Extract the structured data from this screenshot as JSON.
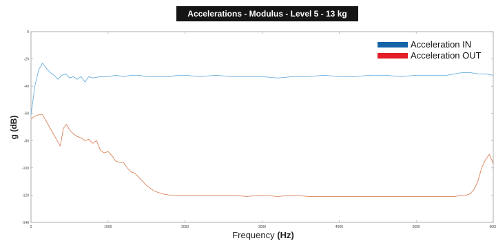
{
  "chart_data": {
    "type": "line",
    "title": "Accelerations - Modulus - Level 5 - 13 kg",
    "xlabel_main": "Frequency",
    "xlabel_unit": "(Hz)",
    "ylabel": "g (dB)",
    "xlim": [
      0,
      6000
    ],
    "ylim": [
      -140,
      0
    ],
    "xticks": [
      0,
      1000,
      2000,
      3000,
      4000,
      5000,
      6000
    ],
    "yticks": [
      0,
      -20,
      -40,
      -60,
      -80,
      -100,
      -120,
      -140
    ],
    "grid": false,
    "legend_position": "top-right",
    "series": [
      {
        "name": "Acceleration IN",
        "legend_color": "#1464a8",
        "line_color": "#6aaedd",
        "x": [
          0,
          50,
          100,
          150,
          200,
          250,
          300,
          350,
          400,
          450,
          500,
          550,
          600,
          650,
          700,
          750,
          800,
          900,
          1000,
          1100,
          1200,
          1300,
          1400,
          1500,
          1600,
          1700,
          1800,
          1900,
          2000,
          2200,
          2400,
          2600,
          2800,
          3000,
          3200,
          3400,
          3600,
          3800,
          4000,
          4200,
          4400,
          4600,
          4800,
          5000,
          5200,
          5400,
          5500,
          5600,
          5700,
          5800,
          5900,
          6000
        ],
        "y": [
          -61,
          -40,
          -28,
          -23,
          -27,
          -30,
          -32,
          -35,
          -32,
          -31,
          -34,
          -33,
          -35,
          -33,
          -37,
          -33,
          -34,
          -33,
          -33,
          -32,
          -33,
          -32,
          -32,
          -33,
          -33,
          -33,
          -33,
          -32,
          -32,
          -33,
          -32,
          -33,
          -33,
          -33,
          -34,
          -33,
          -33,
          -32,
          -33,
          -33,
          -32,
          -32,
          -33,
          -32,
          -32,
          -32,
          -31,
          -30,
          -30,
          -31,
          -31,
          -32
        ]
      },
      {
        "name": "Acceleration OUT",
        "legend_color": "#e41e26",
        "line_color": "#d9825b",
        "x": [
          0,
          50,
          100,
          150,
          200,
          250,
          300,
          350,
          380,
          420,
          460,
          500,
          550,
          600,
          650,
          700,
          750,
          800,
          850,
          900,
          950,
          1000,
          1050,
          1100,
          1150,
          1200,
          1250,
          1300,
          1350,
          1400,
          1450,
          1500,
          1550,
          1600,
          1700,
          1800,
          1900,
          2000,
          2200,
          2400,
          2600,
          2800,
          3000,
          3200,
          3400,
          3600,
          3800,
          4000,
          4200,
          4400,
          4600,
          4800,
          5000,
          5200,
          5400,
          5500,
          5600,
          5650,
          5700,
          5750,
          5800,
          5850,
          5900,
          5950,
          6000
        ],
        "y": [
          -64,
          -62,
          -61,
          -61,
          -66,
          -71,
          -76,
          -81,
          -84,
          -71,
          -68,
          -72,
          -75,
          -77,
          -78,
          -80,
          -79,
          -82,
          -80,
          -87,
          -89,
          -88,
          -91,
          -95,
          -96,
          -96,
          -100,
          -103,
          -104,
          -107,
          -110,
          -113,
          -115,
          -117,
          -119,
          -120,
          -120,
          -120,
          -120,
          -120,
          -120,
          -121,
          -120,
          -121,
          -120,
          -121,
          -121,
          -121,
          -121,
          -121,
          -121,
          -121,
          -121,
          -121,
          -121,
          -121,
          -120,
          -120,
          -119,
          -116,
          -110,
          -100,
          -94,
          -90,
          -97
        ]
      }
    ]
  }
}
